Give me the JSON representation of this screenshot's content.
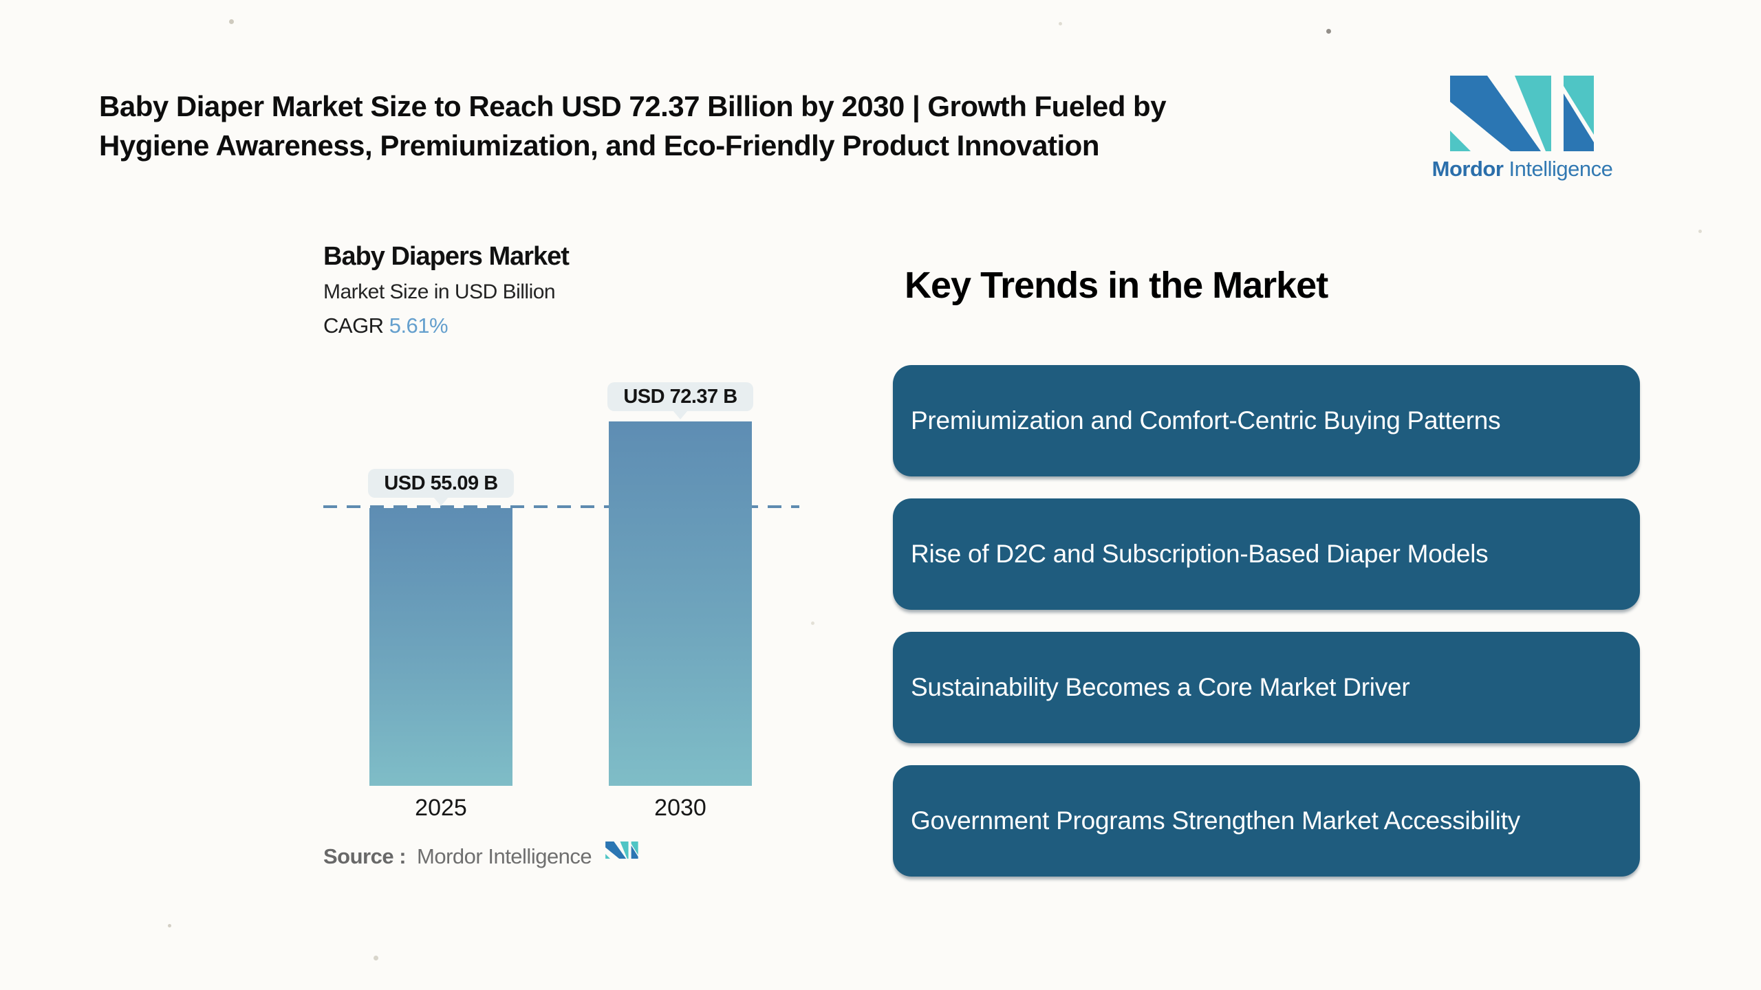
{
  "header": {
    "title_line1": "Baby Diaper Market Size to Reach USD 72.37 Billion by 2030 | Growth Fueled by",
    "title_line2": "Hygiene Awareness, Premiumization, and Eco-Friendly Product Innovation"
  },
  "brand": {
    "name_bold": "Mordor",
    "name_light": "Intelligence",
    "blue": "#2b76b3",
    "teal": "#4fc5c5"
  },
  "chart": {
    "cagr_label": "CAGR"
  },
  "chart_data": {
    "type": "bar",
    "title": "Baby Diapers Market",
    "subtitle": "Market Size in USD Billion",
    "cagr": "5.61%",
    "categories": [
      "2025",
      "2030"
    ],
    "values": [
      55.09,
      72.37
    ],
    "value_labels": [
      "USD 55.09 B",
      "USD 72.37 B"
    ],
    "unit": "USD Billion",
    "ylim": [
      0,
      80
    ],
    "reference_line_y": 55.09,
    "grid": false,
    "legend": false,
    "bar_color_top": "#5e8db3",
    "bar_color_bottom": "#7fbdc7",
    "reference_line_color": "#5e8bb0",
    "tooltip_bg": "#e8eef0"
  },
  "source": {
    "label": "Source :",
    "value": "Mordor Intelligence"
  },
  "trends": {
    "heading": "Key Trends in the Market",
    "card_color": "#1f5c7e",
    "items": [
      "Premiumization and Comfort-Centric Buying Patterns",
      "Rise of D2C and Subscription-Based Diaper Models",
      "Sustainability Becomes a Core Market Driver",
      "Government Programs Strengthen Market Accessibility"
    ]
  }
}
